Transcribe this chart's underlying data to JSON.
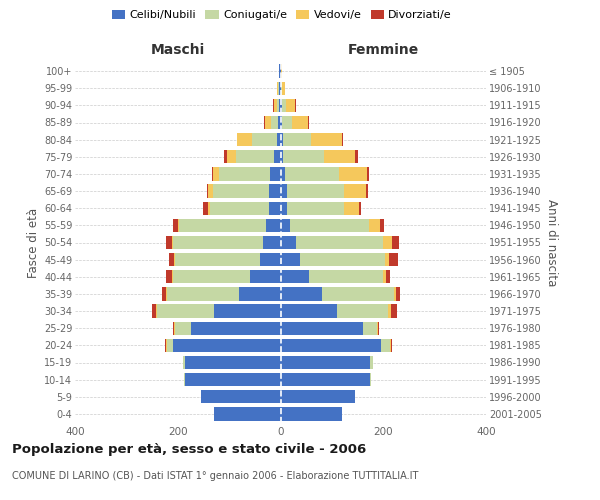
{
  "age_groups": [
    "0-4",
    "5-9",
    "10-14",
    "15-19",
    "20-24",
    "25-29",
    "30-34",
    "35-39",
    "40-44",
    "45-49",
    "50-54",
    "55-59",
    "60-64",
    "65-69",
    "70-74",
    "75-79",
    "80-84",
    "85-89",
    "90-94",
    "95-99",
    "100+"
  ],
  "birth_years": [
    "2001-2005",
    "1996-2000",
    "1991-1995",
    "1986-1990",
    "1981-1985",
    "1976-1980",
    "1971-1975",
    "1966-1970",
    "1961-1965",
    "1956-1960",
    "1951-1955",
    "1946-1950",
    "1941-1945",
    "1936-1940",
    "1931-1935",
    "1926-1930",
    "1921-1925",
    "1916-1920",
    "1911-1915",
    "1906-1910",
    "≤ 1905"
  ],
  "male_celibi": [
    130,
    155,
    185,
    185,
    210,
    175,
    130,
    80,
    60,
    40,
    35,
    28,
    22,
    22,
    20,
    12,
    6,
    4,
    2,
    2,
    2
  ],
  "male_coniugati": [
    0,
    0,
    2,
    5,
    10,
    30,
    110,
    140,
    150,
    165,
    175,
    170,
    115,
    110,
    100,
    75,
    50,
    15,
    5,
    2,
    0
  ],
  "male_vedovi": [
    0,
    0,
    0,
    0,
    2,
    2,
    2,
    2,
    2,
    2,
    2,
    2,
    5,
    10,
    12,
    18,
    28,
    12,
    5,
    2,
    0
  ],
  "male_divorziati": [
    0,
    0,
    0,
    0,
    2,
    2,
    8,
    8,
    10,
    10,
    10,
    9,
    8,
    2,
    2,
    5,
    0,
    2,
    2,
    0,
    0
  ],
  "female_celibi": [
    120,
    145,
    175,
    175,
    195,
    160,
    110,
    80,
    55,
    38,
    30,
    18,
    12,
    12,
    8,
    5,
    4,
    3,
    2,
    1,
    1
  ],
  "female_coniugati": [
    0,
    0,
    2,
    5,
    18,
    28,
    100,
    140,
    145,
    165,
    170,
    155,
    112,
    112,
    105,
    80,
    55,
    20,
    8,
    2,
    0
  ],
  "female_vedovi": [
    0,
    0,
    0,
    0,
    2,
    2,
    5,
    5,
    5,
    8,
    18,
    20,
    28,
    42,
    55,
    60,
    60,
    30,
    18,
    5,
    2
  ],
  "female_divorziati": [
    0,
    0,
    0,
    0,
    2,
    2,
    12,
    8,
    8,
    18,
    12,
    8,
    5,
    5,
    5,
    5,
    2,
    2,
    2,
    0,
    0
  ],
  "color_celibi": "#4472C4",
  "color_coniugati": "#c5d8a4",
  "color_vedovi": "#f5c85c",
  "color_divorziati": "#c0392b",
  "xlim": 400,
  "title": "Popolazione per età, sesso e stato civile - 2006",
  "subtitle": "COMUNE DI LARINO (CB) - Dati ISTAT 1° gennaio 2006 - Elaborazione TUTTITALIA.IT",
  "ylabel_left": "Fasce di età",
  "ylabel_right": "Anni di nascita",
  "xlabel_maschi": "Maschi",
  "xlabel_femmine": "Femmine",
  "bg_color": "#ffffff",
  "grid_color": "#cccccc"
}
